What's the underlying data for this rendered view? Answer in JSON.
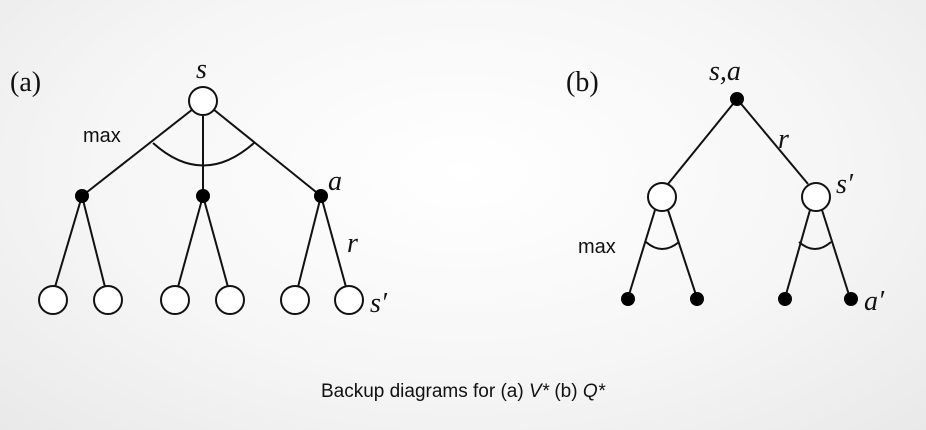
{
  "diagram_a": {
    "panel_label": "(a)",
    "root_label": "s",
    "max_label": "max",
    "action_label": "a",
    "reward_label": "r",
    "next_state_label": "s′"
  },
  "diagram_b": {
    "panel_label": "(b)",
    "root_label": "s,a",
    "reward_label": "r",
    "next_state_label": "s′",
    "max_label": "max",
    "next_action_label": "a′"
  },
  "caption": {
    "prefix": "Backup diagrams for (a) ",
    "v_star": "V*",
    "middle": " (b) ",
    "q_star": "Q*"
  }
}
